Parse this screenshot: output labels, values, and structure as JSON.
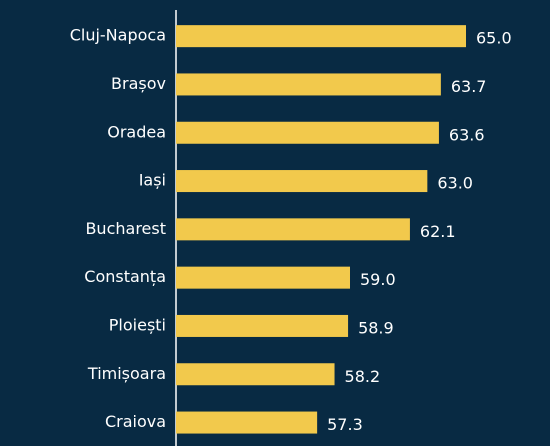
{
  "chart_data": {
    "type": "bar",
    "orientation": "horizontal",
    "categories": [
      "Cluj-Napoca",
      "Brașov",
      "Oradea",
      "Iași",
      "Bucharest",
      "Constanța",
      "Ploiești",
      "Timișoara",
      "Craiova"
    ],
    "values": [
      65.0,
      63.7,
      63.6,
      63.0,
      62.1,
      59.0,
      58.9,
      58.2,
      57.3
    ],
    "value_labels": [
      "65.0",
      "63.7",
      "63.6",
      "63.0",
      "62.1",
      "59.0",
      "58.9",
      "58.2",
      "57.3"
    ],
    "color": "#f2c94c",
    "xlim": [
      50,
      68
    ]
  }
}
